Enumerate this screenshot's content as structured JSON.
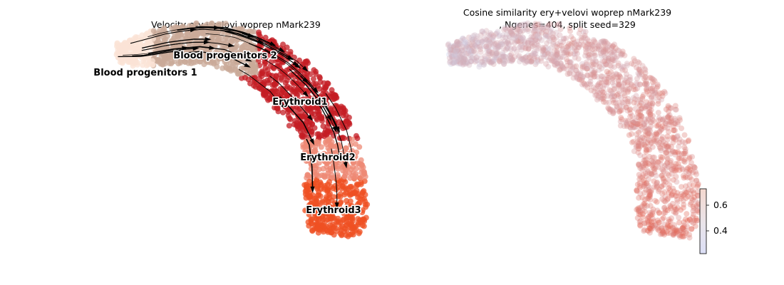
{
  "chart_data": [
    {
      "type": "scatter",
      "title": "Velocity ery+velovi woprep nMark239",
      "xlabel": "",
      "ylabel": "",
      "axes_visible": false,
      "overlay": "velocity streamlines",
      "clusters": [
        {
          "name": "Blood progenitors 1",
          "color": "#fbe3d6"
        },
        {
          "name": "Blood progenitors 2",
          "color": "#c9aa98"
        },
        {
          "name": "Erythroid1",
          "color": "#c41e24"
        },
        {
          "name": "Erythroid2",
          "color": "#ee8a75"
        },
        {
          "name": "Erythroid3",
          "color": "#ef5023"
        }
      ]
    },
    {
      "type": "scatter",
      "title_line1": "Cosine similarity ery+velovi woprep nMark239",
      "title_line2": ", Ngenes=404, split seed=329",
      "xlabel": "",
      "ylabel": "",
      "axes_visible": false,
      "colorbar": {
        "ticks": [
          "0.4",
          "0.6"
        ],
        "range": [
          0.22,
          0.73
        ],
        "colormap": "coolwarm",
        "low_color": "#c9d8f3",
        "high_color": "#e6553f"
      }
    }
  ]
}
